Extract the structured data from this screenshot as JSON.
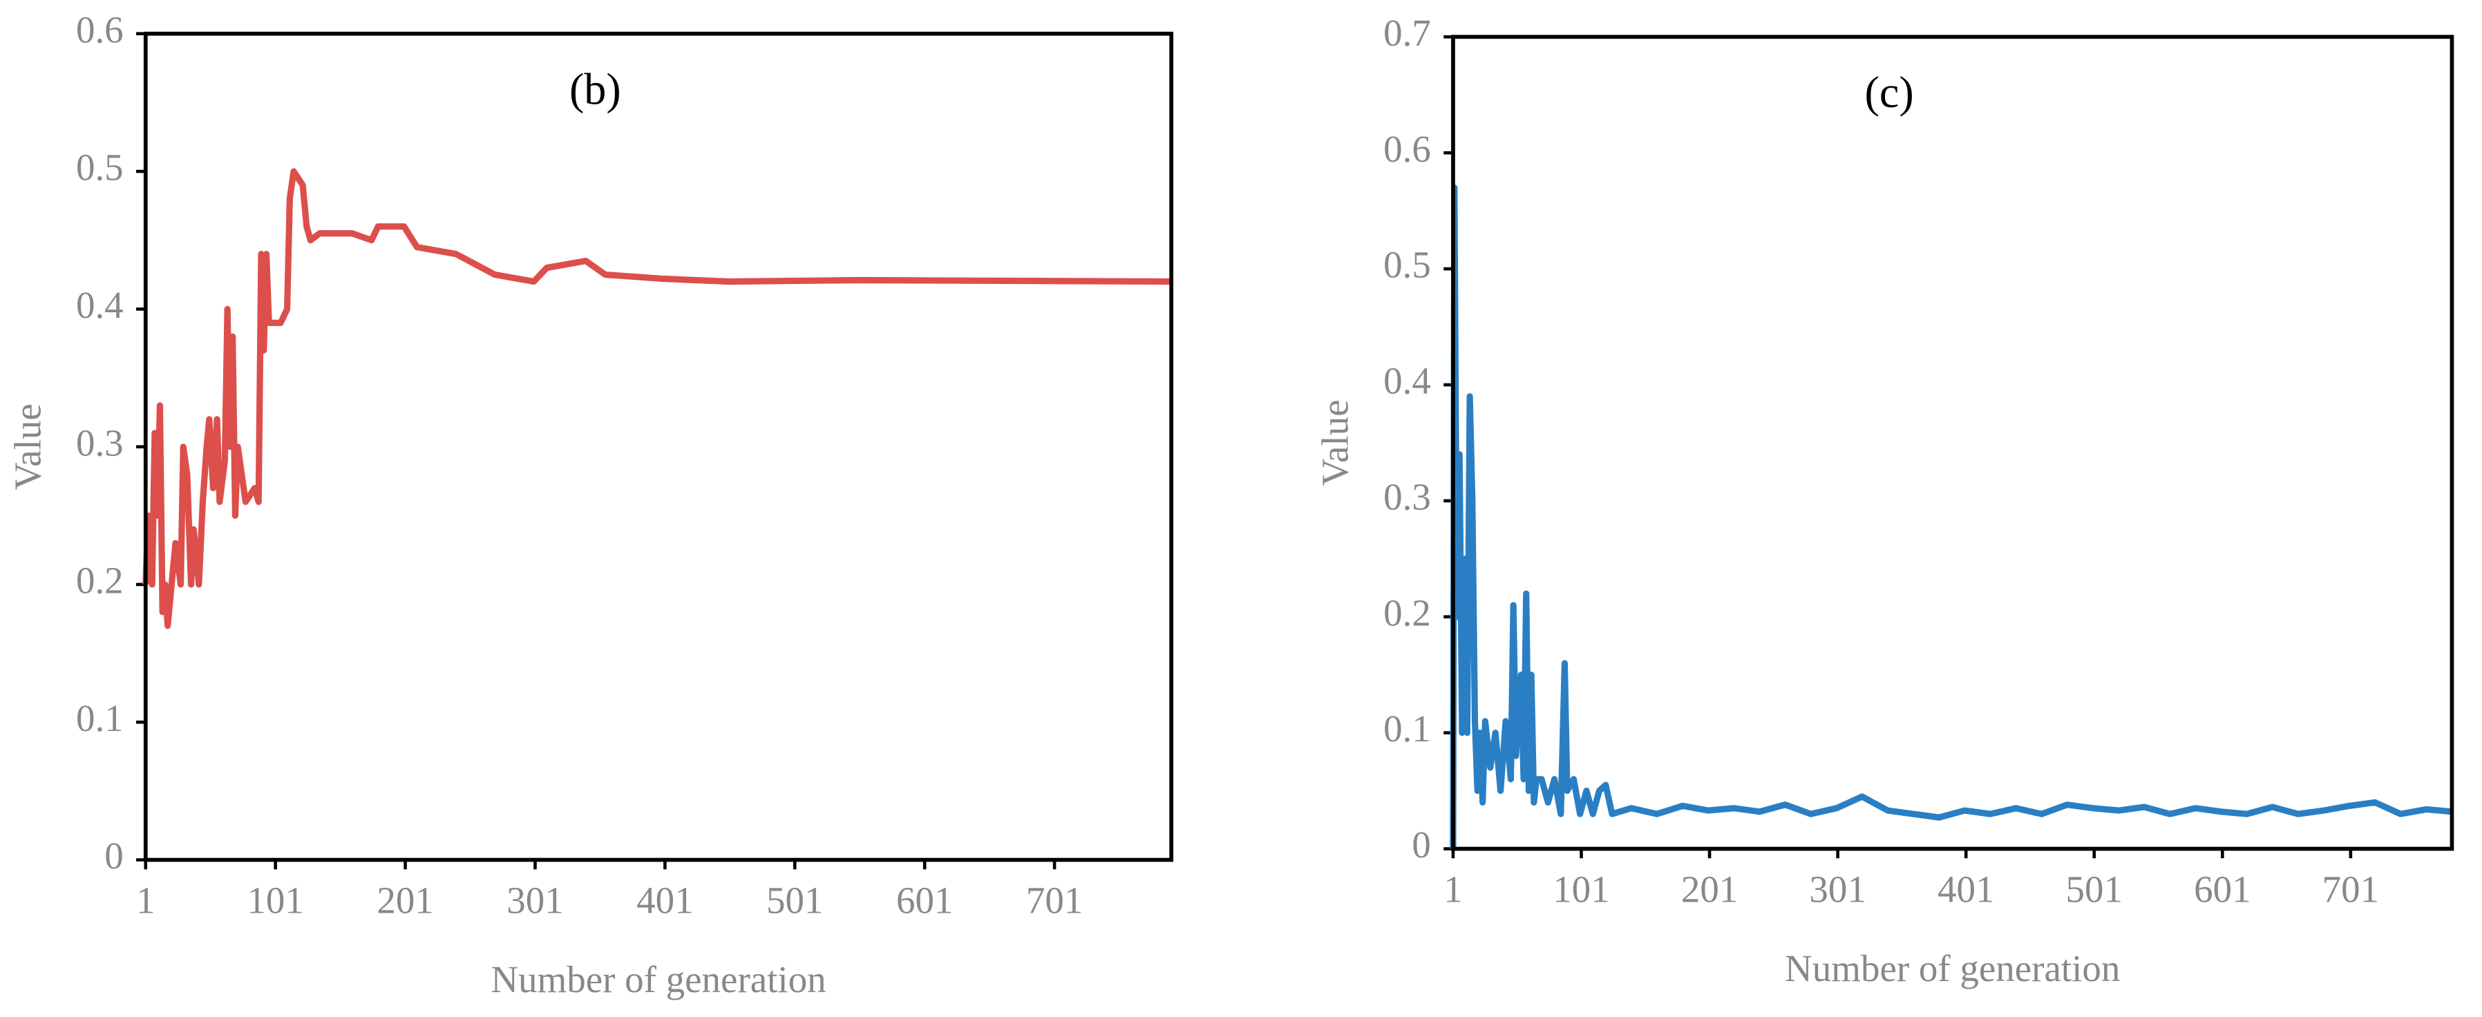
{
  "chart_data": [
    {
      "type": "line",
      "title": "(b)",
      "x_label": "Number of generation",
      "y_label": "Value",
      "xlim": [
        1,
        791
      ],
      "xticks": [
        1,
        101,
        201,
        301,
        401,
        501,
        601,
        701
      ],
      "ylim": [
        0,
        0.6
      ],
      "yticks": [
        0,
        0.1,
        0.2,
        0.3,
        0.4,
        0.5,
        0.6
      ],
      "series": [
        {
          "color": "#dc4f4b",
          "x": [
            1,
            3,
            6,
            8,
            10,
            12,
            14,
            16,
            18,
            20,
            24,
            28,
            30,
            33,
            36,
            38,
            42,
            45,
            48,
            50,
            53,
            56,
            58,
            62,
            64,
            66,
            68,
            70,
            72,
            75,
            78,
            85,
            88,
            90,
            92,
            94,
            96,
            105,
            110,
            112,
            115,
            122,
            125,
            128,
            135,
            160,
            175,
            180,
            200,
            210,
            240,
            250,
            270,
            300,
            310,
            340,
            355,
            400,
            450,
            550,
            791
          ],
          "values": [
            0.2,
            0.25,
            0.2,
            0.31,
            0.25,
            0.33,
            0.18,
            0.2,
            0.17,
            0.19,
            0.23,
            0.2,
            0.3,
            0.28,
            0.2,
            0.24,
            0.2,
            0.26,
            0.3,
            0.32,
            0.27,
            0.32,
            0.26,
            0.29,
            0.4,
            0.3,
            0.38,
            0.25,
            0.3,
            0.28,
            0.26,
            0.27,
            0.26,
            0.44,
            0.37,
            0.44,
            0.39,
            0.39,
            0.4,
            0.48,
            0.5,
            0.49,
            0.46,
            0.45,
            0.455,
            0.455,
            0.45,
            0.46,
            0.46,
            0.445,
            0.44,
            0.435,
            0.425,
            0.42,
            0.43,
            0.435,
            0.425,
            0.422,
            0.42,
            0.421,
            0.42
          ]
        }
      ]
    },
    {
      "type": "line",
      "title": "(c)",
      "x_label": "Number of generation",
      "y_label": "Value",
      "xlim": [
        1,
        780
      ],
      "xticks": [
        1,
        101,
        201,
        301,
        401,
        501,
        601,
        701
      ],
      "ylim": [
        0,
        0.7
      ],
      "yticks": [
        0,
        0.1,
        0.2,
        0.3,
        0.4,
        0.5,
        0.6,
        0.7
      ],
      "series": [
        {
          "color": "#2a7fc4",
          "x": [
            1,
            2,
            4,
            6,
            8,
            10,
            12,
            14,
            16,
            18,
            20,
            22,
            24,
            26,
            30,
            34,
            38,
            42,
            46,
            48,
            50,
            54,
            56,
            58,
            60,
            62,
            64,
            66,
            70,
            75,
            80,
            85,
            88,
            90,
            95,
            100,
            105,
            110,
            115,
            120,
            125,
            140,
            160,
            180,
            200,
            220,
            240,
            260,
            280,
            300,
            320,
            340,
            360,
            380,
            400,
            420,
            440,
            460,
            480,
            500,
            520,
            540,
            560,
            580,
            600,
            620,
            640,
            660,
            680,
            700,
            720,
            740,
            760,
            780
          ],
          "values": [
            0.0,
            0.57,
            0.2,
            0.34,
            0.1,
            0.25,
            0.1,
            0.39,
            0.3,
            0.11,
            0.05,
            0.1,
            0.04,
            0.11,
            0.07,
            0.1,
            0.05,
            0.11,
            0.06,
            0.21,
            0.08,
            0.15,
            0.06,
            0.22,
            0.05,
            0.15,
            0.04,
            0.06,
            0.06,
            0.04,
            0.06,
            0.03,
            0.16,
            0.05,
            0.06,
            0.03,
            0.05,
            0.03,
            0.05,
            0.055,
            0.03,
            0.035,
            0.03,
            0.037,
            0.033,
            0.035,
            0.032,
            0.038,
            0.03,
            0.035,
            0.045,
            0.033,
            0.03,
            0.027,
            0.033,
            0.03,
            0.035,
            0.03,
            0.038,
            0.035,
            0.033,
            0.036,
            0.03,
            0.035,
            0.032,
            0.03,
            0.036,
            0.03,
            0.033,
            0.037,
            0.04,
            0.03,
            0.034,
            0.032
          ]
        }
      ]
    }
  ]
}
